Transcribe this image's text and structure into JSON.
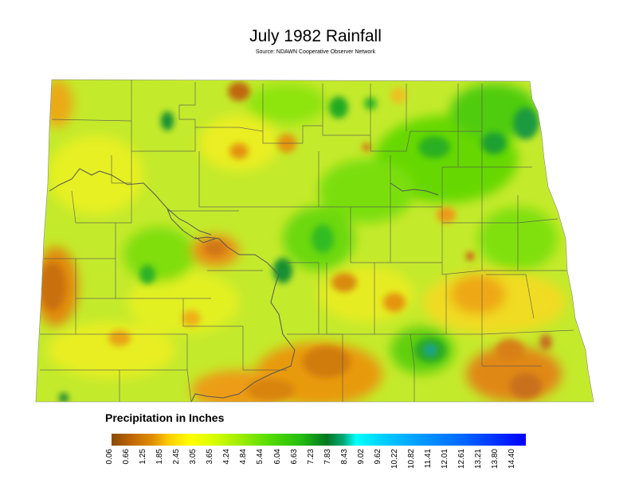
{
  "title": "July 1982 Rainfall",
  "subtitle": "Source: NDAWN Cooperative Observer Network",
  "legend": {
    "title": "Precipitation in Inches",
    "ticks": [
      "0.06",
      "0.66",
      "1.25",
      "1.85",
      "2.45",
      "3.05",
      "3.65",
      "4.24",
      "4.84",
      "5.44",
      "6.04",
      "6.63",
      "7.23",
      "7.83",
      "8.43",
      "9.02",
      "9.62",
      "10.22",
      "10.82",
      "11.41",
      "12.01",
      "12.61",
      "13.21",
      "13.80",
      "14.40"
    ],
    "colors": [
      "#8b4a00",
      "#d98a00",
      "#ffcc00",
      "#ffff00",
      "#ccff00",
      "#88ee00",
      "#44dd00",
      "#11bb22",
      "#007722",
      "#00ffff",
      "#00ccff",
      "#0099ff",
      "#0066ff",
      "#0000ff"
    ]
  },
  "map": {
    "region": "North Dakota",
    "base_color": "#b8e830",
    "dry_color": "#e08a10",
    "wet_color": "#22aa22"
  }
}
